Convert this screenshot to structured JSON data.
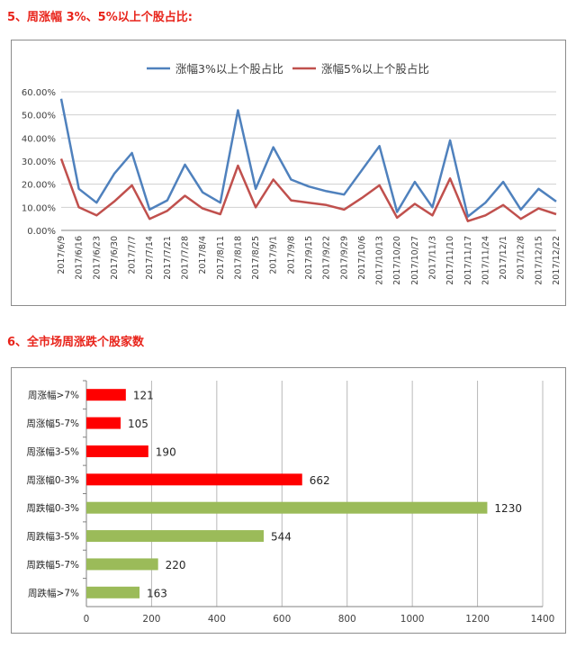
{
  "section5": {
    "heading": "5、周涨幅 3%、5%以上个股占比:"
  },
  "section6": {
    "heading": "6、全市场周涨跌个股家数"
  },
  "colors": {
    "heading": "#e8231a",
    "series_blue": "#4f81bd",
    "series_red": "#c0504d",
    "bar_up": "#ff0000",
    "bar_down": "#9bbb59"
  },
  "chart_data": [
    {
      "type": "line",
      "categories": [
        "2017/6/9",
        "2017/6/16",
        "2017/6/23",
        "2017/6/30",
        "2017/7/7",
        "2017/7/14",
        "2017/7/21",
        "2017/7/28",
        "2017/8/4",
        "2017/8/11",
        "2017/8/18",
        "2017/8/25",
        "2017/9/1",
        "2017/9/8",
        "2017/9/15",
        "2017/9/22",
        "2017/9/29",
        "2017/10/6",
        "2017/10/13",
        "2017/10/20",
        "2017/10/27",
        "2017/11/3",
        "2017/11/10",
        "2017/11/17",
        "2017/11/24",
        "2017/12/1",
        "2017/12/8",
        "2017/12/15",
        "2017/12/22"
      ],
      "series": [
        {
          "name": "涨幅3%以上个股占比",
          "values": [
            57,
            18,
            12,
            24.5,
            33.5,
            9,
            13,
            28.5,
            16.5,
            12,
            52,
            18,
            36,
            22,
            19,
            17,
            15.5,
            26,
            36.5,
            8,
            21,
            10,
            39,
            6,
            12,
            21,
            9,
            18,
            12.5
          ]
        },
        {
          "name": "涨幅5%以上个股占比",
          "values": [
            31,
            10,
            6.5,
            12.5,
            19.5,
            5,
            8.5,
            15,
            9.5,
            7,
            28,
            10,
            22,
            13,
            12,
            11,
            9,
            14,
            19.5,
            5.5,
            11.5,
            6.5,
            22.5,
            4,
            6.5,
            11,
            5,
            9.5,
            7
          ]
        }
      ],
      "ylim": [
        0,
        60
      ],
      "yticks": [
        "0.00%",
        "10.00%",
        "20.00%",
        "30.00%",
        "40.00%",
        "50.00%",
        "60.00%"
      ],
      "legend": "top",
      "grid": true
    },
    {
      "type": "bar",
      "orientation": "horizontal",
      "categories": [
        "周涨幅>7%",
        "周涨幅5-7%",
        "周涨幅3-5%",
        "周涨幅0-3%",
        "周跌幅0-3%",
        "周跌幅3-5%",
        "周跌幅5-7%",
        "周跌幅>7%"
      ],
      "values": [
        121,
        105,
        190,
        662,
        1230,
        544,
        220,
        163
      ],
      "xlim": [
        0,
        1400
      ],
      "xticks": [
        "0",
        "200",
        "400",
        "600",
        "800",
        "1000",
        "1200",
        "1400"
      ],
      "grid": true
    }
  ]
}
